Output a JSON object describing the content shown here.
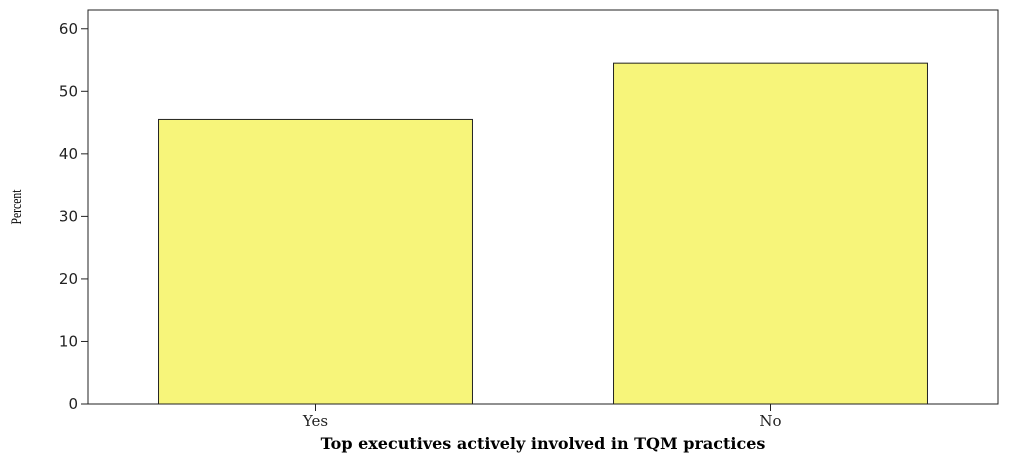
{
  "chart_data": {
    "type": "bar",
    "categories": [
      "Yes",
      "No"
    ],
    "values": [
      45.5,
      54.5
    ],
    "title": "",
    "xlabel": "Top executives actively involved in TQM practices",
    "ylabel": "Percent",
    "ylim": [
      0,
      63
    ],
    "yticks": [
      0,
      10,
      20,
      30,
      40,
      50,
      60
    ],
    "grid": false,
    "legend": "none",
    "bar_color": "#f7f57a",
    "bar_edge_color": "#222222"
  }
}
